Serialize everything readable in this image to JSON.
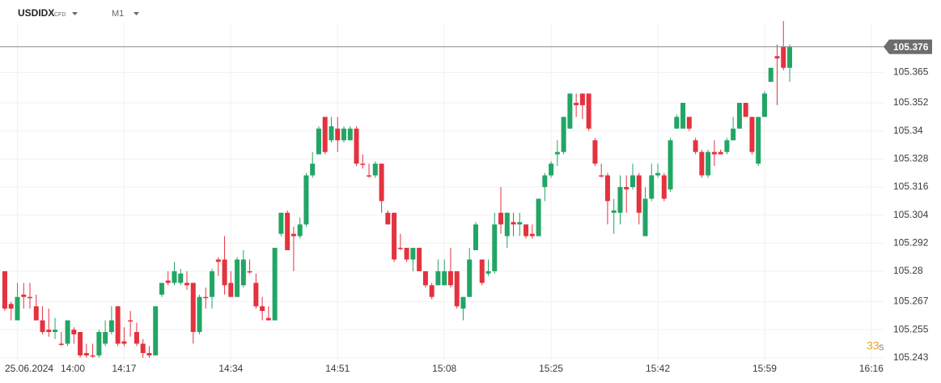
{
  "chart_data": {
    "type": "candlestick",
    "symbol": "USDIDX",
    "symbol_type": "CFD",
    "timeframe": "M1",
    "date": "25.06.2024",
    "countdown": "33",
    "countdown_unit": "s",
    "up_color": "#22a565",
    "down_color": "#e4323f",
    "last_price": 105.376,
    "x": [
      "13:58",
      "13:59",
      "14:00",
      "14:01",
      "14:02",
      "14:03",
      "14:04",
      "14:05",
      "14:06",
      "14:07",
      "14:08",
      "14:09",
      "14:10",
      "14:11",
      "14:12",
      "14:13",
      "14:14",
      "14:15",
      "14:16",
      "14:17",
      "14:18",
      "14:19",
      "14:20",
      "14:21",
      "14:22",
      "14:23",
      "14:24",
      "14:25",
      "14:26",
      "14:27",
      "14:28",
      "14:29",
      "14:30",
      "14:31",
      "14:32",
      "14:33",
      "14:34",
      "14:35",
      "14:36",
      "14:37",
      "14:38",
      "14:39",
      "14:40",
      "14:41",
      "14:42",
      "14:43",
      "14:44",
      "14:45",
      "14:46",
      "14:47",
      "14:48",
      "14:49",
      "14:50",
      "14:51",
      "14:52",
      "14:53",
      "14:54",
      "14:55",
      "14:56",
      "14:57",
      "14:58",
      "14:59",
      "15:00",
      "15:01",
      "15:02",
      "15:03",
      "15:04",
      "15:05",
      "15:06",
      "15:07",
      "15:08",
      "15:09",
      "15:10",
      "15:11",
      "15:12",
      "15:13",
      "15:14",
      "15:15",
      "15:16",
      "15:17",
      "15:18",
      "15:19",
      "15:20",
      "15:21",
      "15:22",
      "15:23",
      "15:24",
      "15:25",
      "15:26",
      "15:27",
      "15:28",
      "15:29",
      "15:30",
      "15:31",
      "15:32",
      "15:33",
      "15:34",
      "15:35",
      "15:36",
      "15:37",
      "15:38",
      "15:39",
      "15:40",
      "15:41",
      "15:42",
      "15:43",
      "15:44",
      "15:45",
      "15:46",
      "15:47",
      "15:48",
      "15:49",
      "15:50",
      "15:51",
      "15:52",
      "15:53",
      "15:54",
      "15:55",
      "15:56",
      "15:57",
      "15:58",
      "15:59",
      "16:00",
      "16:01",
      "16:02",
      "16:03"
    ],
    "open": [
      105.28,
      105.266,
      105.259,
      105.27,
      105.269,
      105.265,
      105.259,
      105.255,
      105.254,
      105.249,
      105.249,
      105.255,
      105.254,
      105.245,
      105.244,
      105.244,
      105.249,
      105.254,
      105.265,
      105.25,
      105.259,
      105.254,
      105.249,
      105.245,
      105.244,
      105.27,
      105.276,
      105.275,
      105.275,
      105.275,
      105.275,
      105.254,
      105.269,
      105.269,
      105.285,
      105.285,
      105.275,
      105.269,
      105.274,
      105.28,
      105.275,
      105.265,
      105.26,
      105.259,
      105.296,
      105.305,
      105.296,
      105.295,
      105.3,
      105.321,
      105.33,
      105.346,
      105.336,
      105.341,
      105.336,
      105.336,
      105.341,
      105.326,
      105.321,
      105.321,
      105.326,
      105.305,
      105.305,
      105.29,
      105.29,
      105.285,
      105.29,
      105.28,
      105.274,
      105.274,
      105.274,
      105.28,
      105.28,
      105.264,
      105.269,
      105.289,
      105.285,
      105.279,
      105.28,
      105.305,
      105.295,
      105.301,
      105.3,
      105.3,
      105.296,
      105.295,
      105.316,
      105.321,
      105.33,
      105.331,
      105.341,
      105.352,
      105.356,
      105.356,
      105.336,
      105.321,
      105.321,
      105.305,
      105.305,
      105.316,
      105.316,
      105.321,
      105.295,
      105.311,
      105.321,
      105.321,
      105.315,
      105.341,
      105.341,
      105.346,
      105.336,
      105.331,
      105.321,
      105.331,
      105.331,
      105.331,
      105.336,
      105.341,
      105.352,
      105.346,
      105.326,
      105.346,
      105.361,
      105.372,
      105.376,
      105.367
    ],
    "high": [
      105.28,
      105.267,
      105.275,
      105.275,
      105.275,
      105.27,
      105.265,
      105.264,
      105.26,
      105.254,
      105.259,
      105.256,
      105.254,
      105.249,
      105.249,
      105.255,
      105.259,
      105.265,
      105.265,
      105.256,
      105.263,
      105.258,
      105.251,
      105.248,
      105.265,
      105.275,
      105.28,
      105.284,
      105.281,
      105.28,
      105.275,
      105.27,
      105.273,
      105.281,
      105.286,
      105.295,
      105.28,
      105.286,
      105.289,
      105.285,
      105.279,
      105.269,
      105.265,
      105.29,
      105.305,
      105.306,
      105.299,
      105.303,
      105.322,
      105.331,
      105.342,
      105.346,
      105.346,
      105.346,
      105.342,
      105.342,
      105.342,
      105.33,
      105.326,
      105.327,
      105.326,
      105.306,
      105.305,
      105.296,
      105.29,
      105.29,
      105.29,
      105.28,
      105.275,
      105.285,
      105.285,
      105.29,
      105.28,
      105.269,
      105.29,
      105.301,
      105.285,
      105.285,
      105.305,
      105.316,
      105.305,
      105.305,
      105.305,
      105.3,
      105.3,
      105.311,
      105.322,
      105.327,
      105.336,
      105.346,
      105.356,
      105.356,
      105.356,
      105.356,
      105.337,
      105.326,
      105.322,
      105.311,
      105.321,
      105.321,
      105.326,
      105.322,
      105.316,
      105.326,
      105.326,
      105.322,
      105.337,
      105.347,
      105.352,
      105.346,
      105.337,
      105.332,
      105.332,
      105.336,
      105.332,
      105.337,
      105.346,
      105.352,
      105.352,
      105.346,
      105.346,
      105.357,
      105.367,
      105.377,
      105.387,
      105.377
    ],
    "low": [
      105.263,
      105.259,
      105.259,
      105.264,
      105.264,
      105.259,
      105.253,
      105.252,
      105.251,
      105.248,
      105.248,
      105.249,
      105.243,
      105.243,
      105.243,
      105.243,
      105.248,
      105.253,
      105.248,
      105.248,
      105.252,
      105.248,
      105.243,
      105.243,
      105.244,
      105.269,
      105.274,
      105.274,
      105.274,
      105.272,
      105.249,
      105.253,
      105.264,
      105.264,
      105.278,
      105.27,
      105.269,
      105.269,
      105.273,
      105.279,
      105.264,
      105.259,
      105.259,
      105.259,
      105.295,
      105.289,
      105.28,
      105.294,
      105.299,
      105.32,
      105.33,
      105.33,
      105.335,
      105.331,
      105.335,
      105.336,
      105.325,
      105.324,
      105.32,
      105.32,
      105.305,
      105.3,
      105.284,
      105.289,
      105.284,
      105.28,
      105.28,
      105.273,
      105.268,
      105.274,
      105.274,
      105.273,
      105.264,
      105.259,
      105.269,
      105.289,
      105.274,
      105.278,
      105.279,
      105.296,
      105.29,
      105.295,
      105.295,
      105.294,
      105.294,
      105.295,
      105.31,
      105.32,
      105.325,
      105.33,
      105.341,
      105.346,
      105.345,
      105.34,
      105.325,
      105.32,
      105.3,
      105.296,
      105.3,
      105.305,
      105.315,
      105.3,
      105.295,
      105.31,
      105.32,
      105.31,
      105.314,
      105.341,
      105.341,
      105.34,
      105.33,
      105.32,
      105.32,
      105.325,
      105.33,
      105.33,
      105.336,
      105.341,
      105.346,
      105.33,
      105.325,
      105.346,
      105.361,
      105.351,
      105.366,
      105.361
    ],
    "close": [
      105.264,
      105.264,
      105.269,
      105.269,
      105.269,
      105.259,
      105.254,
      105.254,
      105.255,
      105.249,
      105.259,
      105.253,
      105.244,
      105.244,
      105.244,
      105.254,
      105.254,
      105.259,
      105.249,
      105.249,
      105.259,
      105.249,
      105.245,
      105.244,
      105.265,
      105.275,
      105.275,
      105.28,
      105.279,
      105.274,
      105.254,
      105.269,
      105.269,
      105.28,
      105.284,
      105.274,
      105.269,
      105.285,
      105.285,
      105.28,
      105.265,
      105.263,
      105.259,
      105.29,
      105.305,
      105.289,
      105.295,
      105.3,
      105.321,
      105.326,
      105.341,
      105.331,
      105.342,
      105.336,
      105.341,
      105.341,
      105.326,
      105.326,
      105.321,
      105.326,
      105.31,
      105.3,
      105.285,
      105.29,
      105.285,
      105.29,
      105.28,
      105.274,
      105.269,
      105.28,
      105.28,
      105.274,
      105.265,
      105.269,
      105.285,
      105.3,
      105.275,
      105.28,
      105.3,
      105.3,
      105.305,
      105.3,
      105.301,
      105.295,
      105.295,
      105.311,
      105.321,
      105.326,
      105.331,
      105.346,
      105.356,
      105.351,
      105.351,
      105.341,
      105.326,
      105.321,
      105.31,
      105.306,
      105.316,
      105.315,
      105.321,
      105.305,
      105.311,
      105.321,
      105.322,
      105.311,
      105.336,
      105.346,
      105.352,
      105.341,
      105.331,
      105.321,
      105.331,
      105.33,
      105.33,
      105.336,
      105.341,
      105.352,
      105.346,
      105.331,
      105.346,
      105.356,
      105.367,
      105.371,
      105.367,
      105.376
    ],
    "xlim": [
      "13:57",
      "16:18"
    ],
    "xticks": [
      "14:00",
      "14:17",
      "14:34",
      "14:51",
      "15:08",
      "15:25",
      "15:42",
      "15:59",
      "16:16"
    ],
    "ylim": [
      105.236,
      105.396
    ],
    "yticks": [
      105.243,
      105.255,
      105.267,
      105.28,
      105.292,
      105.304,
      105.316,
      105.328,
      105.34,
      105.352,
      105.365
    ],
    "grid": true
  }
}
